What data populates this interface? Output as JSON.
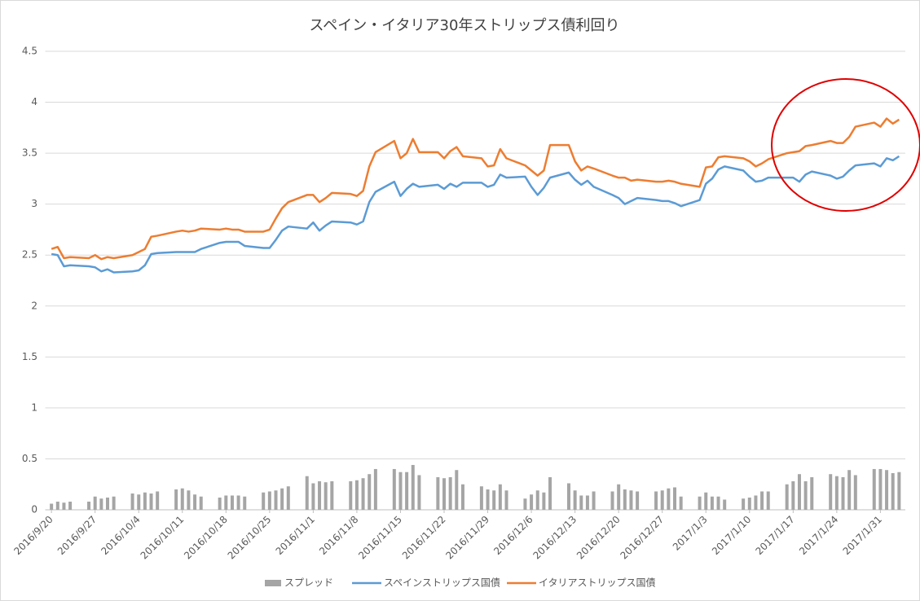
{
  "chart_data": {
    "type": "combo",
    "title": "スペイン・イタリア30年ストリップス債利回り",
    "x": [
      "2016/9/20",
      "2016/9/21",
      "2016/9/22",
      "2016/9/23",
      "2016/9/26",
      "2016/9/27",
      "2016/9/28",
      "2016/9/29",
      "2016/9/30",
      "2016/10/3",
      "2016/10/4",
      "2016/10/5",
      "2016/10/6",
      "2016/10/7",
      "2016/10/10",
      "2016/10/11",
      "2016/10/12",
      "2016/10/13",
      "2016/10/14",
      "2016/10/17",
      "2016/10/18",
      "2016/10/19",
      "2016/10/20",
      "2016/10/21",
      "2016/10/24",
      "2016/10/25",
      "2016/10/26",
      "2016/10/27",
      "2016/10/28",
      "2016/10/31",
      "2016/11/1",
      "2016/11/2",
      "2016/11/3",
      "2016/11/4",
      "2016/11/7",
      "2016/11/8",
      "2016/11/9",
      "2016/11/10",
      "2016/11/11",
      "2016/11/14",
      "2016/11/15",
      "2016/11/16",
      "2016/11/17",
      "2016/11/18",
      "2016/11/21",
      "2016/11/22",
      "2016/11/23",
      "2016/11/24",
      "2016/11/25",
      "2016/11/28",
      "2016/11/29",
      "2016/11/30",
      "2016/12/1",
      "2016/12/2",
      "2016/12/5",
      "2016/12/6",
      "2016/12/7",
      "2016/12/8",
      "2016/12/9",
      "2016/12/12",
      "2016/12/13",
      "2016/12/14",
      "2016/12/15",
      "2016/12/16",
      "2016/12/19",
      "2016/12/20",
      "2016/12/21",
      "2016/12/22",
      "2016/12/23",
      "2016/12/26",
      "2016/12/27",
      "2016/12/28",
      "2016/12/29",
      "2016/12/30",
      "2017/1/2",
      "2017/1/3",
      "2017/1/4",
      "2017/1/5",
      "2017/1/6",
      "2017/1/9",
      "2017/1/10",
      "2017/1/11",
      "2017/1/12",
      "2017/1/13",
      "2017/1/16",
      "2017/1/17",
      "2017/1/18",
      "2017/1/19",
      "2017/1/20",
      "2017/1/23",
      "2017/1/24",
      "2017/1/25",
      "2017/1/26",
      "2017/1/27",
      "2017/1/30",
      "2017/1/31",
      "2017/2/1",
      "2017/2/2",
      "2017/2/3"
    ],
    "xlim": [
      "2016/9/19",
      "2017/2/4"
    ],
    "xticks": [
      "2016/9/20",
      "2016/9/27",
      "2016/10/4",
      "2016/10/11",
      "2016/10/18",
      "2016/10/25",
      "2016/11/1",
      "2016/11/8",
      "2016/11/15",
      "2016/11/22",
      "2016/11/29",
      "2016/12/6",
      "2016/12/13",
      "2016/12/20",
      "2016/12/27",
      "2017/1/3",
      "2017/1/10",
      "2017/1/17",
      "2017/1/24",
      "2017/1/31"
    ],
    "ylim": [
      0,
      4.5
    ],
    "yticks": [
      0,
      0.5,
      1,
      1.5,
      2,
      2.5,
      3,
      3.5,
      4,
      4.5
    ],
    "grid": true,
    "legend": "bottom",
    "series": [
      {
        "name": "スプレッド",
        "type": "bar",
        "color": "#a5a5a5",
        "values": [
          0.06,
          0.08,
          0.07,
          0.08,
          0.08,
          0.13,
          0.11,
          0.12,
          0.13,
          0.16,
          0.15,
          0.17,
          0.16,
          0.18,
          0.2,
          0.21,
          0.19,
          0.15,
          0.13,
          0.12,
          0.14,
          0.14,
          0.14,
          0.13,
          0.17,
          0.18,
          0.19,
          0.21,
          0.23,
          0.33,
          0.26,
          0.28,
          0.27,
          0.28,
          0.28,
          0.29,
          0.31,
          0.35,
          0.4,
          0.4,
          0.37,
          0.37,
          0.44,
          0.34,
          0.32,
          0.31,
          0.32,
          0.39,
          0.25,
          0.23,
          0.2,
          0.19,
          0.25,
          0.19,
          0.11,
          0.15,
          0.19,
          0.17,
          0.32,
          0.26,
          0.19,
          0.14,
          0.14,
          0.18,
          0.18,
          0.25,
          0.2,
          0.19,
          0.18,
          0.18,
          0.19,
          0.21,
          0.22,
          0.13,
          0.13,
          0.17,
          0.13,
          0.13,
          0.1,
          0.11,
          0.12,
          0.14,
          0.18,
          0.18,
          0.25,
          0.28,
          0.35,
          0.28,
          0.32,
          0.35,
          0.33,
          0.32,
          0.39,
          0.34,
          0.4,
          0.4,
          0.39,
          0.36,
          0.37
        ]
      },
      {
        "name": "スペインストリップス国債",
        "type": "line",
        "color": "#5b9bd5",
        "values": [
          2.51,
          2.5,
          2.39,
          2.4,
          2.39,
          2.38,
          2.34,
          2.36,
          2.33,
          2.34,
          2.35,
          2.4,
          2.51,
          2.52,
          2.53,
          2.53,
          2.53,
          2.53,
          2.56,
          2.62,
          2.63,
          2.63,
          2.63,
          2.59,
          2.57,
          2.57,
          2.65,
          2.74,
          2.78,
          2.76,
          2.82,
          2.74,
          2.79,
          2.83,
          2.82,
          2.8,
          2.83,
          3.02,
          3.12,
          3.22,
          3.08,
          3.15,
          3.2,
          3.17,
          3.19,
          3.15,
          3.2,
          3.17,
          3.21,
          3.21,
          3.17,
          3.19,
          3.29,
          3.26,
          3.27,
          3.17,
          3.09,
          3.16,
          3.26,
          3.31,
          3.24,
          3.19,
          3.23,
          3.17,
          3.09,
          3.06,
          3.0,
          3.03,
          3.06,
          3.04,
          3.03,
          3.03,
          3.01,
          2.98,
          3.04,
          3.2,
          3.25,
          3.34,
          3.37,
          3.33,
          3.27,
          3.22,
          3.23,
          3.26,
          3.26,
          3.26,
          3.22,
          3.29,
          3.32,
          3.28,
          3.25,
          3.27,
          3.33,
          3.38,
          3.4,
          3.37,
          3.45,
          3.43,
          3.47
        ]
      },
      {
        "name": "イタリアストリップス国債",
        "type": "line",
        "color": "#ed7d31",
        "values": [
          2.56,
          2.58,
          2.47,
          2.48,
          2.47,
          2.5,
          2.46,
          2.48,
          2.47,
          2.5,
          2.53,
          2.56,
          2.68,
          2.69,
          2.73,
          2.74,
          2.73,
          2.74,
          2.76,
          2.75,
          2.76,
          2.75,
          2.75,
          2.73,
          2.73,
          2.75,
          2.86,
          2.96,
          3.02,
          3.09,
          3.09,
          3.02,
          3.06,
          3.11,
          3.1,
          3.08,
          3.13,
          3.37,
          3.51,
          3.62,
          3.45,
          3.5,
          3.64,
          3.51,
          3.51,
          3.45,
          3.52,
          3.56,
          3.47,
          3.45,
          3.37,
          3.38,
          3.54,
          3.45,
          3.38,
          3.33,
          3.28,
          3.33,
          3.58,
          3.58,
          3.42,
          3.33,
          3.37,
          3.35,
          3.28,
          3.26,
          3.26,
          3.23,
          3.24,
          3.22,
          3.22,
          3.23,
          3.22,
          3.2,
          3.17,
          3.36,
          3.37,
          3.46,
          3.47,
          3.45,
          3.42,
          3.37,
          3.4,
          3.44,
          3.5,
          3.51,
          3.52,
          3.57,
          3.58,
          3.62,
          3.6,
          3.6,
          3.66,
          3.76,
          3.8,
          3.76,
          3.84,
          3.79,
          3.83
        ]
      }
    ]
  }
}
